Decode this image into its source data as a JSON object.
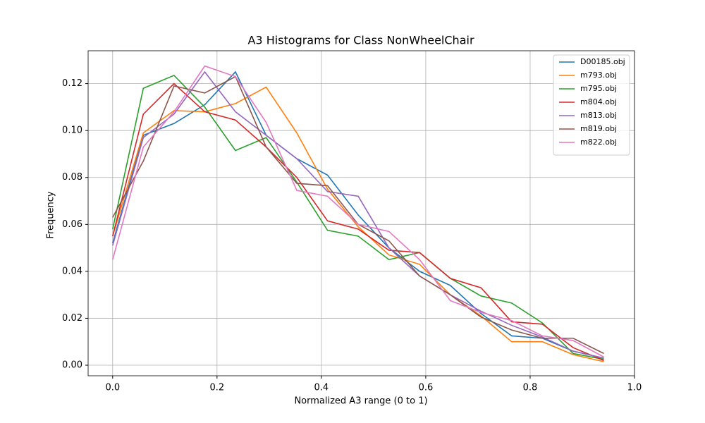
{
  "chart_data": {
    "type": "line",
    "title": "A3 Histograms for Class NonWheelChair",
    "xlabel": "Normalized A3 range (0 to 1)",
    "ylabel": "Frequency",
    "x": [
      0,
      0.0588,
      0.1176,
      0.1765,
      0.2353,
      0.2941,
      0.3529,
      0.4118,
      0.4706,
      0.5294,
      0.5882,
      0.6471,
      0.7059,
      0.7647,
      0.8235,
      0.8824,
      0.9412
    ],
    "series": [
      {
        "name": "D00185.obj",
        "color": "#1f77b4",
        "values": [
          0.052,
          0.098,
          0.103,
          0.111,
          0.125,
          0.098,
          0.088,
          0.081,
          0.064,
          0.05,
          0.04,
          0.034,
          0.022,
          0.0125,
          0.0115,
          0.006,
          0.003
        ]
      },
      {
        "name": "m793.obj",
        "color": "#ff7f0e",
        "values": [
          0.055,
          0.099,
          0.1085,
          0.108,
          0.1115,
          0.1185,
          0.099,
          0.075,
          0.059,
          0.047,
          0.043,
          0.03,
          0.021,
          0.01,
          0.01,
          0.0045,
          0.0015
        ]
      },
      {
        "name": "m795.obj",
        "color": "#2ca02c",
        "values": [
          0.058,
          0.118,
          0.1235,
          0.11,
          0.0915,
          0.097,
          0.078,
          0.0575,
          0.055,
          0.045,
          0.048,
          0.037,
          0.0295,
          0.0265,
          0.018,
          0.005,
          0.0025
        ]
      },
      {
        "name": "m804.obj",
        "color": "#d62728",
        "values": [
          0.055,
          0.107,
          0.12,
          0.108,
          0.1045,
          0.093,
          0.08,
          0.0615,
          0.058,
          0.049,
          0.048,
          0.037,
          0.033,
          0.0185,
          0.0175,
          0.0075,
          0.002
        ]
      },
      {
        "name": "m813.obj",
        "color": "#9467bd",
        "values": [
          0.051,
          0.097,
          0.107,
          0.125,
          0.108,
          0.098,
          0.088,
          0.074,
          0.072,
          0.05,
          0.038,
          0.03,
          0.023,
          0.017,
          0.012,
          0.006,
          0.003
        ]
      },
      {
        "name": "m819.obj",
        "color": "#8c564b",
        "values": [
          0.063,
          0.087,
          0.119,
          0.116,
          0.123,
          0.093,
          0.0775,
          0.0765,
          0.06,
          0.053,
          0.038,
          0.03,
          0.0205,
          0.015,
          0.0115,
          0.0115,
          0.005
        ]
      },
      {
        "name": "m822.obj",
        "color": "#e377c2",
        "values": [
          0.045,
          0.093,
          0.108,
          0.1275,
          0.123,
          0.1035,
          0.0745,
          0.072,
          0.06,
          0.057,
          0.045,
          0.0275,
          0.0225,
          0.019,
          0.0125,
          0.0105,
          0.0035
        ]
      }
    ],
    "xlim": [
      -0.047,
      1.0
    ],
    "ylim": [
      -0.0045,
      0.134
    ],
    "xticks": [
      {
        "value": 0,
        "label": "0.0"
      },
      {
        "value": 0.2,
        "label": "0.2"
      },
      {
        "value": 0.4,
        "label": "0.4"
      },
      {
        "value": 0.6,
        "label": "0.6"
      },
      {
        "value": 0.8,
        "label": "0.8"
      },
      {
        "value": 1.0,
        "label": "1.0"
      }
    ],
    "yticks": [
      {
        "value": 0,
        "label": "0.00"
      },
      {
        "value": 0.02,
        "label": "0.02"
      },
      {
        "value": 0.04,
        "label": "0.04"
      },
      {
        "value": 0.06,
        "label": "0.06"
      },
      {
        "value": 0.08,
        "label": "0.08"
      },
      {
        "value": 0.1,
        "label": "0.10"
      },
      {
        "value": 0.12,
        "label": "0.12"
      }
    ],
    "grid": true,
    "legend": "upper right"
  }
}
